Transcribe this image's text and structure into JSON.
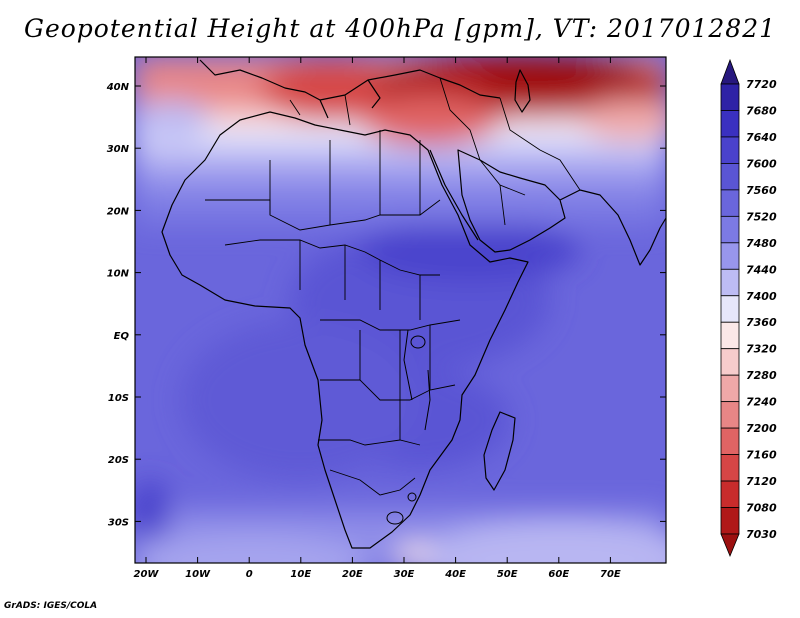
{
  "title": "Geopotential Height at 400hPa [gpm], VT: 2017012821",
  "credit": "GrADS: IGES/COLA",
  "lat_labels": [
    "40N",
    "30N",
    "20N",
    "10N",
    "EQ",
    "10S",
    "20S",
    "30S"
  ],
  "lon_labels": [
    "20W",
    "10W",
    "0",
    "10E",
    "20E",
    "30E",
    "40E",
    "50E",
    "60E",
    "70E"
  ],
  "colorbar": {
    "labels": [
      "7720",
      "7680",
      "7640",
      "7600",
      "7560",
      "7520",
      "7480",
      "7440",
      "7400",
      "7360",
      "7320",
      "7280",
      "7240",
      "7200",
      "7160",
      "7120",
      "7080",
      "7030"
    ],
    "colors": [
      "#27187e",
      "#2e22a6",
      "#3a30c0",
      "#4a42cc",
      "#5a55d4",
      "#6a66dc",
      "#7c7ae4",
      "#9896ec",
      "#bdbcf4",
      "#e6e6fa",
      "#fbe8e8",
      "#f7cccc",
      "#efa8a8",
      "#e88686",
      "#e06464",
      "#d64646",
      "#c82c2c",
      "#b01818",
      "#9c1010"
    ]
  }
}
